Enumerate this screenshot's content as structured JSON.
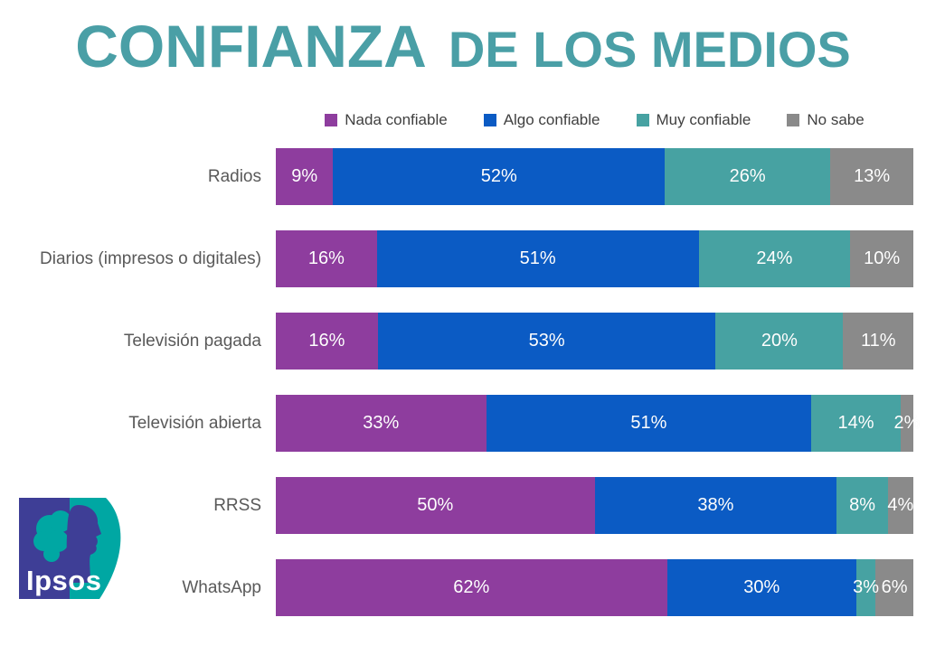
{
  "title": {
    "part1": "CONFIANZA",
    "part2": "DE LOS MEDIOS"
  },
  "legend": [
    {
      "label": "Nada confiable",
      "color": "#8E3D9E"
    },
    {
      "label": "Algo confiable",
      "color": "#0B5BC4"
    },
    {
      "label": "Muy confiable",
      "color": "#47A2A2"
    },
    {
      "label": "No sabe",
      "color": "#8A8A8A"
    }
  ],
  "chart_data": {
    "type": "bar",
    "orientation": "horizontal-stacked",
    "title": "CONFIANZA DE LOS MEDIOS",
    "categories": [
      "Radios",
      "Diarios (impresos o digitales)",
      "Televisión pagada",
      "Televisión abierta",
      "RRSS",
      "WhatsApp"
    ],
    "series": [
      {
        "name": "Nada confiable",
        "color": "#8E3D9E",
        "values": [
          9,
          16,
          16,
          33,
          50,
          62
        ]
      },
      {
        "name": "Algo confiable",
        "color": "#0B5BC4",
        "values": [
          52,
          51,
          53,
          51,
          38,
          30
        ]
      },
      {
        "name": "Muy confiable",
        "color": "#47A2A2",
        "values": [
          26,
          24,
          20,
          14,
          8,
          3
        ]
      },
      {
        "name": "No sabe",
        "color": "#8A8A8A",
        "values": [
          13,
          10,
          11,
          2,
          4,
          6
        ]
      }
    ],
    "value_suffix": "%",
    "xlim": [
      0,
      100
    ],
    "value_labels": "inside-white",
    "legend_position": "top",
    "grid": false
  },
  "logo": {
    "text": "Ipsos"
  },
  "colors": {
    "title": "#4A9FA6",
    "category_label": "#595959",
    "legend_text": "#404040",
    "background": "#FFFFFF",
    "logo_indigo": "#3E3E96",
    "logo_teal": "#00A7A3",
    "bar_value_text": "#FFFFFF"
  }
}
